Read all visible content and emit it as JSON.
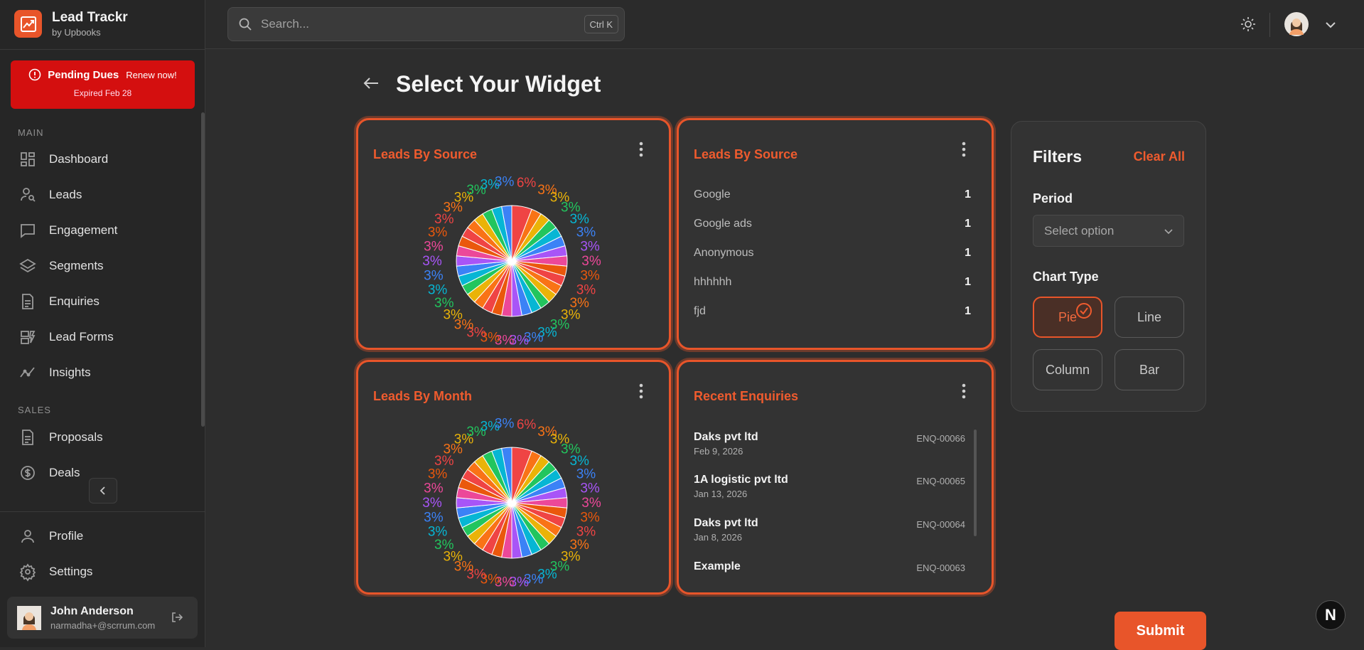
{
  "brand": {
    "name": "Lead Trackr",
    "sub": "by Upbooks"
  },
  "dues": {
    "title": "Pending Dues",
    "renew": "Renew now!",
    "expired": "Expired Feb 28"
  },
  "sidebar": {
    "main_label": "MAIN",
    "sales_label": "SALES",
    "items": [
      {
        "label": "Dashboard",
        "icon": "dashboard-icon"
      },
      {
        "label": "Leads",
        "icon": "leads-icon"
      },
      {
        "label": "Engagement",
        "icon": "chat-icon"
      },
      {
        "label": "Segments",
        "icon": "layers-icon"
      },
      {
        "label": "Enquiries",
        "icon": "document-icon"
      },
      {
        "label": "Lead Forms",
        "icon": "form-icon"
      },
      {
        "label": "Insights",
        "icon": "trend-icon"
      }
    ],
    "sales_items": [
      {
        "label": "Proposals",
        "icon": "document-icon"
      },
      {
        "label": "Deals",
        "icon": "dollar-icon"
      }
    ],
    "bottom_items": [
      {
        "label": "Profile",
        "icon": "user-icon"
      },
      {
        "label": "Settings",
        "icon": "gear-icon"
      }
    ]
  },
  "user": {
    "name": "John Anderson",
    "email": "narmadha+@scrrum.com"
  },
  "search": {
    "placeholder": "Search...",
    "shortcut": "Ctrl K"
  },
  "page": {
    "title": "Select Your Widget"
  },
  "widgets": {
    "w1": {
      "title": "Leads By Source"
    },
    "w2": {
      "title": "Leads By Source",
      "rows": [
        {
          "name": "Google",
          "value": "1"
        },
        {
          "name": "Google ads",
          "value": "1"
        },
        {
          "name": "Anonymous",
          "value": "1"
        },
        {
          "name": "hhhhhh",
          "value": "1"
        },
        {
          "name": "fjd",
          "value": "1"
        }
      ]
    },
    "w3": {
      "title": "Leads By Month"
    },
    "w4": {
      "title": "Recent Enquiries",
      "rows": [
        {
          "name": "Daks pvt ltd",
          "date": "Feb 9, 2026",
          "id": "ENQ-00066"
        },
        {
          "name": "1A logistic pvt ltd",
          "date": "Jan 13, 2026",
          "id": "ENQ-00065"
        },
        {
          "name": "Daks pvt ltd",
          "date": "Jan 8, 2026",
          "id": "ENQ-00064"
        },
        {
          "name": "Example",
          "date": "",
          "id": "ENQ-00063"
        }
      ]
    }
  },
  "filters": {
    "title": "Filters",
    "clear": "Clear All",
    "period_label": "Period",
    "period_placeholder": "Select option",
    "chart_type_label": "Chart Type",
    "chart_types": [
      "Pie",
      "Line",
      "Column",
      "Bar"
    ],
    "selected_chart_type": "Pie"
  },
  "submit_label": "Submit",
  "badge_letter": "N",
  "colors": {
    "accent": "#e8552a",
    "danger": "#d40f0f",
    "background": "#2d2d2d",
    "card": "#333333"
  },
  "chart_data": [
    {
      "type": "pie",
      "title": "Leads By Source",
      "slice_count": 33,
      "values": [
        6,
        3,
        3,
        3,
        3,
        3,
        3,
        3,
        3,
        3,
        3,
        3,
        3,
        3,
        3,
        3,
        3,
        3,
        3,
        3,
        3,
        3,
        3,
        3,
        3,
        3,
        3,
        3,
        3,
        3,
        3,
        3,
        3
      ],
      "value_labels": [
        "6%",
        "3%",
        "3%",
        "3%",
        "3%",
        "3%",
        "3%",
        "3%",
        "3%",
        "3%",
        "3%",
        "3%",
        "3%",
        "3%",
        "3%",
        "3%",
        "3%",
        "3%",
        "3%",
        "3%",
        "3%",
        "3%",
        "3%",
        "3%",
        "3%",
        "3%",
        "3%",
        "3%",
        "3%",
        "3%",
        "3%",
        "3%",
        "3%"
      ],
      "palette": [
        "#ef4444",
        "#f97316",
        "#eab308",
        "#22c55e",
        "#06b6d4",
        "#3b82f6",
        "#a855f7",
        "#ec4899",
        "#ea580c"
      ]
    },
    {
      "type": "pie",
      "title": "Leads By Month",
      "slice_count": 33,
      "values": [
        6,
        3,
        3,
        3,
        3,
        3,
        3,
        3,
        3,
        3,
        3,
        3,
        3,
        3,
        3,
        3,
        3,
        3,
        3,
        3,
        3,
        3,
        3,
        3,
        3,
        3,
        3,
        3,
        3,
        3,
        3,
        3,
        3
      ],
      "value_labels": [
        "6%",
        "3%",
        "3%",
        "3%",
        "3%",
        "3%",
        "3%",
        "3%",
        "3%",
        "3%",
        "3%",
        "3%",
        "3%",
        "3%",
        "3%",
        "3%",
        "3%",
        "3%",
        "3%",
        "3%",
        "3%",
        "3%",
        "3%",
        "3%",
        "3%",
        "3%",
        "3%",
        "3%",
        "3%",
        "3%",
        "3%",
        "3%",
        "3%"
      ],
      "palette": [
        "#ef4444",
        "#f97316",
        "#eab308",
        "#22c55e",
        "#06b6d4",
        "#3b82f6",
        "#a855f7",
        "#ec4899",
        "#ea580c"
      ]
    }
  ]
}
